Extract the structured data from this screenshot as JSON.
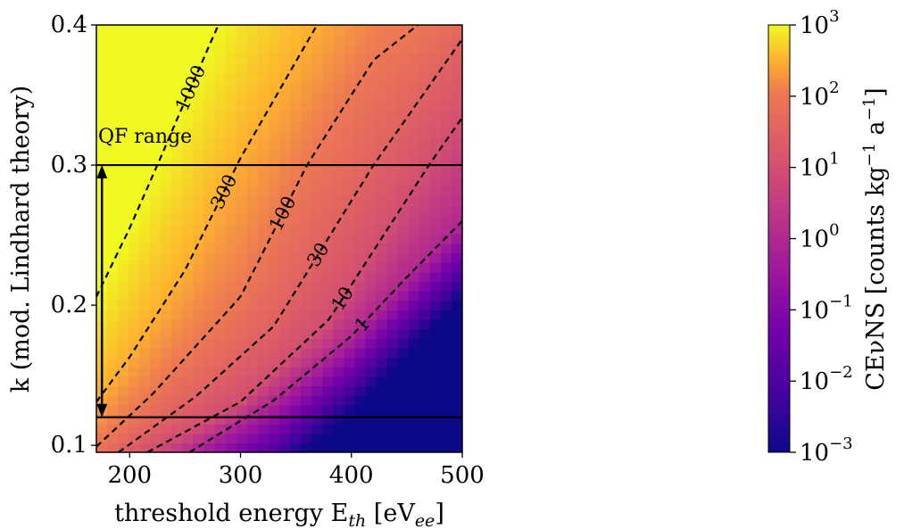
{
  "chart_data": {
    "type": "heatmap",
    "colormap": "plasma",
    "x": {
      "label_main": "threshold energy E",
      "label_sub": "th",
      "label_unit_open": " [eV",
      "label_unit_sub": "ee",
      "label_unit_close": "]",
      "range": [
        170,
        500
      ],
      "ticks": [
        200,
        300,
        400,
        500
      ],
      "tick_labels": [
        "200",
        "300",
        "400",
        "500"
      ]
    },
    "y": {
      "label": "k (mod. Lindhard theory)",
      "range": [
        0.095,
        0.4
      ],
      "ticks": [
        0.1,
        0.2,
        0.3,
        0.4
      ],
      "tick_labels": [
        "0.1",
        "0.2",
        "0.3",
        "0.4"
      ]
    },
    "colorbar": {
      "label_main": "CEνNS [counts kg",
      "label_exp1": "−1",
      "label_mid": " a",
      "label_exp2": "−1",
      "label_close": "]",
      "scale": "log",
      "range": [
        0.001,
        1000
      ],
      "ticks": [
        {
          "value": 1000,
          "base": "10",
          "exp": "3"
        },
        {
          "value": 100,
          "base": "10",
          "exp": "2"
        },
        {
          "value": 10,
          "base": "10",
          "exp": "1"
        },
        {
          "value": 1,
          "base": "10",
          "exp": "0"
        },
        {
          "value": 0.1,
          "base": "10",
          "exp": "−1"
        },
        {
          "value": 0.01,
          "base": "10",
          "exp": "−2"
        },
        {
          "value": 0.001,
          "base": "10",
          "exp": "−3"
        }
      ]
    },
    "contours": [
      {
        "level": 1000,
        "label": "1000",
        "points": [
          [
            170,
            0.206
          ],
          [
            200,
            0.255
          ],
          [
            225,
            0.3
          ],
          [
            250,
            0.346
          ],
          [
            280,
            0.4
          ]
        ],
        "label_at": [
          255,
          0.35
        ]
      },
      {
        "level": 300,
        "label": "300",
        "points": [
          [
            170,
            0.131
          ],
          [
            200,
            0.163
          ],
          [
            250,
            0.225
          ],
          [
            300,
            0.305
          ],
          [
            350,
            0.374
          ],
          [
            369,
            0.4
          ]
        ],
        "label_at": [
          285,
          0.285
        ]
      },
      {
        "level": 100,
        "label": "100",
        "points": [
          [
            170,
            0.099
          ],
          [
            220,
            0.136
          ],
          [
            300,
            0.206
          ],
          [
            360,
            0.3
          ],
          [
            420,
            0.375
          ],
          [
            460,
            0.4
          ]
        ],
        "label_at": [
          338,
          0.265
        ]
      },
      {
        "level": 30,
        "label": "30",
        "points": [
          [
            190,
            0.095
          ],
          [
            260,
            0.135
          ],
          [
            330,
            0.185
          ],
          [
            420,
            0.3
          ],
          [
            500,
            0.39
          ]
        ],
        "label_at": [
          370,
          0.225
        ]
      },
      {
        "level": 10,
        "label": "10",
        "points": [
          [
            216,
            0.095
          ],
          [
            300,
            0.131
          ],
          [
            380,
            0.19
          ],
          [
            470,
            0.3
          ],
          [
            500,
            0.334
          ]
        ],
        "label_at": [
          392,
          0.201
        ]
      },
      {
        "level": 1,
        "label": "1",
        "points": [
          [
            254,
            0.095
          ],
          [
            330,
            0.132
          ],
          [
            400,
            0.178
          ],
          [
            450,
            0.22
          ],
          [
            500,
            0.26
          ]
        ],
        "label_at": [
          410,
          0.18
        ]
      }
    ],
    "hlines": [
      0.3,
      0.12
    ],
    "annotation": {
      "text": "QF range",
      "arrow_x": 175,
      "arrow_y": [
        0.12,
        0.3
      ]
    }
  }
}
